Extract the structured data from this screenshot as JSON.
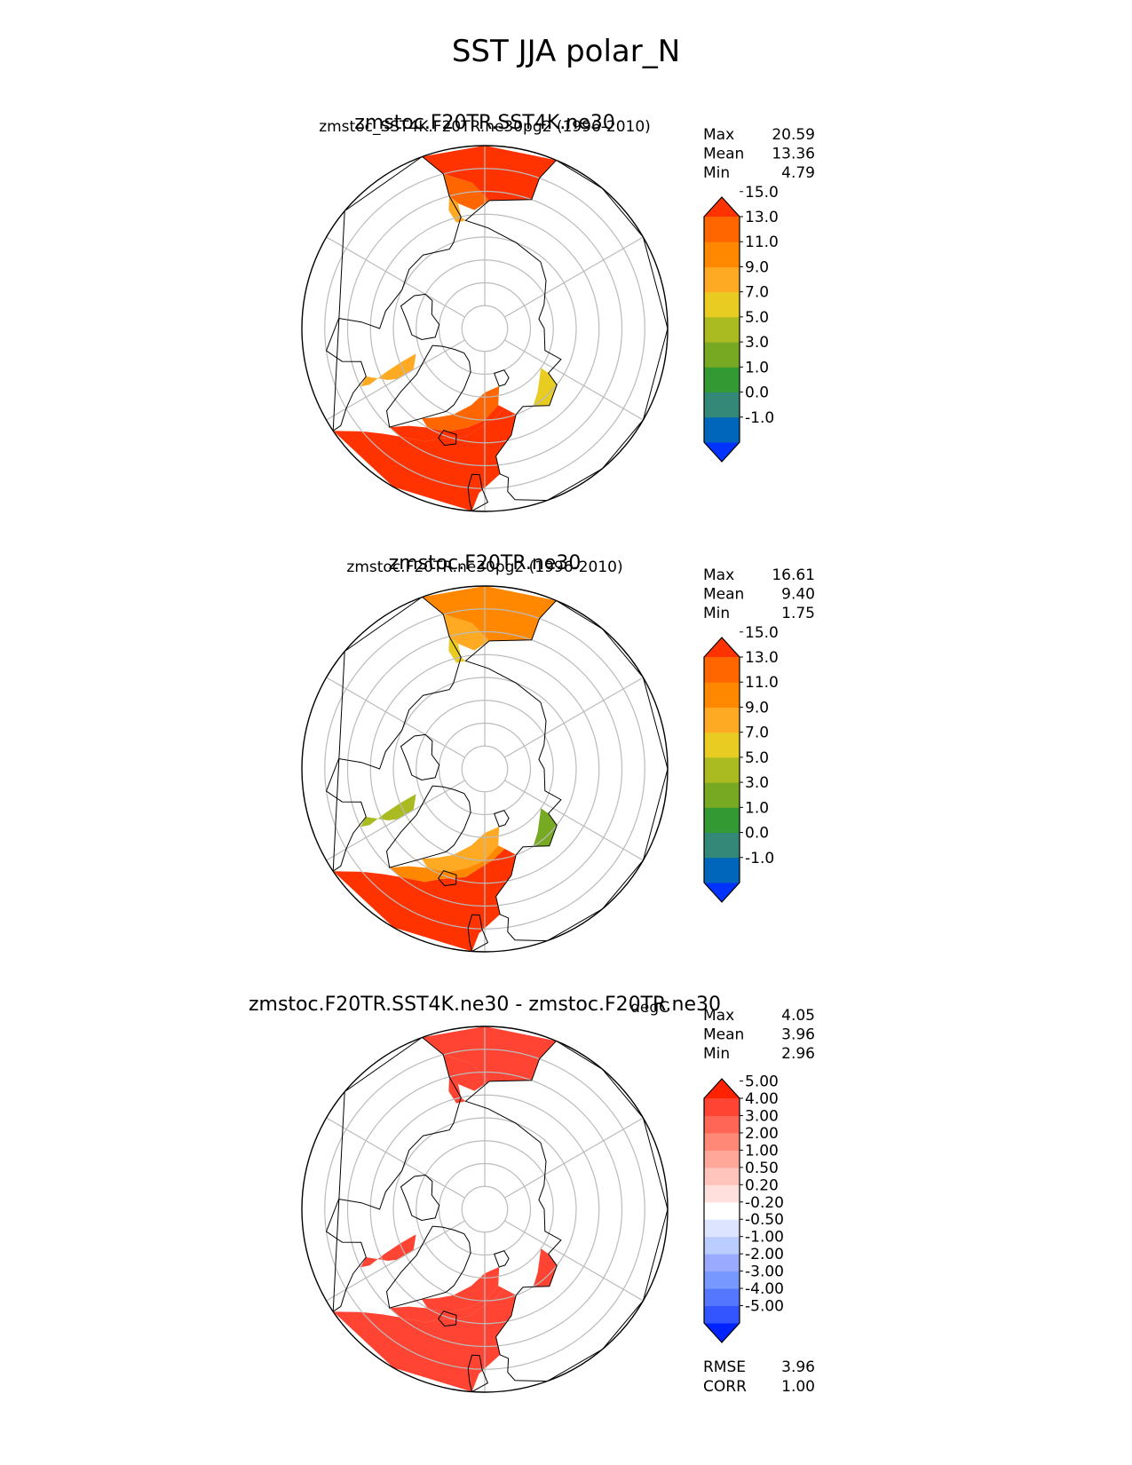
{
  "title": "SST JJA polar_N",
  "panels": [
    {
      "test_name": "zmstoc.F20TR.SST4K.ne30",
      "secondary_label": "zmstoc_SST4K.F20TR.ne30pg2 (1996-2010)",
      "stats": [
        {
          "label": "Max",
          "value": "20.59"
        },
        {
          "label": "Mean",
          "value": "13.36"
        },
        {
          "label": "Min",
          "value": "4.79"
        }
      ],
      "colorbar": {
        "colors": [
          "#0033ff",
          "#0066bb",
          "#338877",
          "#339933",
          "#77aa22",
          "#aabb22",
          "#e8cc22",
          "#ffaa22",
          "#ff8800",
          "#ff6600",
          "#ff3300"
        ],
        "ticks": [
          "-1.0",
          "0.0",
          "1.0",
          "3.0",
          "5.0",
          "7.0",
          "9.0",
          "11.0",
          "13.0",
          "15.0"
        ]
      },
      "field": {
        "kind": "absolute",
        "atlantic": [
          14,
          17,
          20
        ],
        "pacific": [
          9,
          13,
          16
        ],
        "arctic_outflow": [
          5,
          7,
          9
        ]
      }
    },
    {
      "test_name": "zmstoc.F20TR.ne30",
      "secondary_label": "zmstoc.F20TR.ne30pg2 (1996-2010)",
      "stats": [
        {
          "label": "Max",
          "value": "16.61"
        },
        {
          "label": "Mean",
          "value": "9.40"
        },
        {
          "label": "Min",
          "value": "1.75"
        }
      ],
      "colorbar": {
        "colors": [
          "#0033ff",
          "#0066bb",
          "#338877",
          "#339933",
          "#77aa22",
          "#aabb22",
          "#e8cc22",
          "#ffaa22",
          "#ff8800",
          "#ff6600",
          "#ff3300"
        ],
        "ticks": [
          "-1.0",
          "0.0",
          "1.0",
          "3.0",
          "5.0",
          "7.0",
          "9.0",
          "11.0",
          "13.0",
          "15.0"
        ]
      },
      "field": {
        "kind": "absolute",
        "atlantic": [
          9,
          12,
          16
        ],
        "pacific": [
          7,
          9,
          11
        ],
        "arctic_outflow": [
          2,
          4,
          6
        ]
      }
    },
    {
      "test_name": "zmstoc.F20TR.SST4K.ne30 - zmstoc.F20TR.ne30",
      "secondary_label": "degC",
      "stats": [
        {
          "label": "Max",
          "value": "4.05"
        },
        {
          "label": "Mean",
          "value": "3.96"
        },
        {
          "label": "Min",
          "value": "2.96"
        }
      ],
      "colorbar": {
        "colors": [
          "#0022ff",
          "#3355ff",
          "#5577ff",
          "#7799ff",
          "#99aaff",
          "#bbccff",
          "#dde4ff",
          "#ffffff",
          "#ffe0dc",
          "#ffc4bb",
          "#ffa899",
          "#ff8877",
          "#ff6655",
          "#ff4433",
          "#ff2200"
        ],
        "ticks": [
          "-5.00",
          "-4.00",
          "-3.00",
          "-2.00",
          "-1.00",
          "-0.50",
          "-0.20",
          "0.20",
          "0.50",
          "1.00",
          "2.00",
          "3.00",
          "4.00",
          "5.00"
        ]
      },
      "field": {
        "kind": "difference",
        "atlantic": [
          4,
          4,
          4
        ],
        "pacific": [
          4,
          4,
          4
        ],
        "arctic_outflow": [
          3,
          4,
          4
        ]
      }
    }
  ],
  "error_stats": [
    {
      "label": "RMSE",
      "value": "3.96"
    },
    {
      "label": "CORR",
      "value": "1.00"
    }
  ],
  "chart_data": {
    "type": "heatmap",
    "title": "SST JJA polar_N",
    "projection": "north-polar-stereographic",
    "variable": "SST",
    "season": "JJA",
    "units": "degC",
    "series": [
      {
        "name": "zmstoc.F20TR.SST4K.ne30",
        "max": 20.59,
        "mean": 13.36,
        "min": 4.79
      },
      {
        "name": "zmstoc.F20TR.ne30",
        "max": 16.61,
        "mean": 9.4,
        "min": 1.75
      },
      {
        "name": "zmstoc.F20TR.SST4K.ne30 - zmstoc.F20TR.ne30",
        "max": 4.05,
        "mean": 3.96,
        "min": 2.96,
        "rmse": 3.96,
        "corr": 1.0
      }
    ]
  }
}
